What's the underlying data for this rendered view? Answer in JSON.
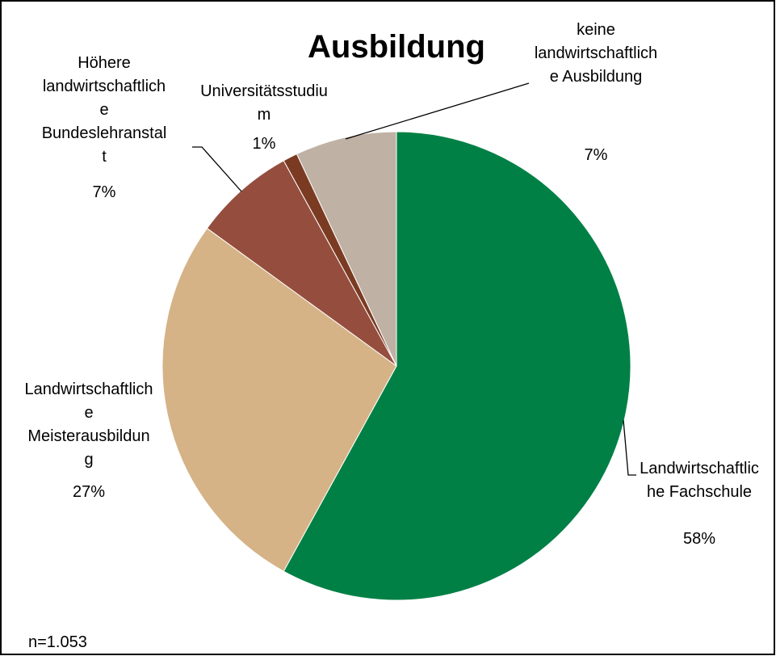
{
  "chart_data": {
    "type": "pie",
    "title": "Ausbildung",
    "categories": [
      "Landwirtschaftliche Fachschule",
      "Landwirtschaftliche Meisterausbildung",
      "Höhere landwirtschaftliche Bundeslehranstalt",
      "Universitätsstudium",
      "keine landwirtschaftliche Ausbildung"
    ],
    "values": [
      58,
      27,
      7,
      1,
      7
    ],
    "value_labels": [
      "58%",
      "27%",
      "7%",
      "1%",
      "7%"
    ],
    "colors": [
      "#008045",
      "#d5b387",
      "#954e3e",
      "#7a3b22",
      "#bfb1a4"
    ],
    "note": "n=1.053"
  }
}
